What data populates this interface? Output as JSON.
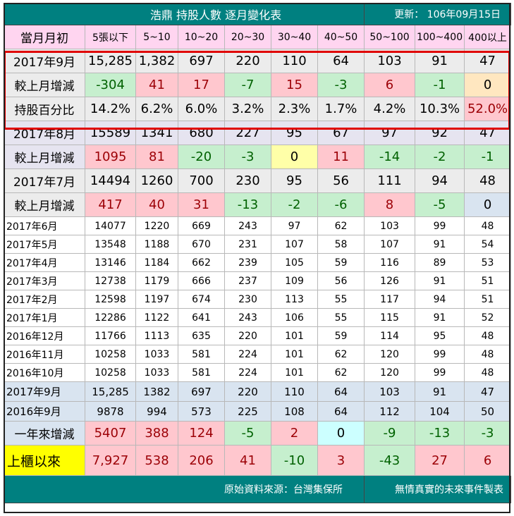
{
  "title": {
    "main": "浩鼎  持股人數 逐月變化表",
    "updated": "更新：  106年09月15日"
  },
  "headers": [
    "當月月初",
    "5張以下",
    "5~10",
    "10~20",
    "20~30",
    "30~40",
    "40~50",
    "50~100",
    "100~400",
    "400以上"
  ],
  "sep2017": {
    "label": "2017年9月",
    "values": [
      "15,285",
      "1,382",
      "697",
      "220",
      "110",
      "64",
      "103",
      "91",
      "47"
    ],
    "change_label": "較上月增減",
    "change": [
      "-304",
      "41",
      "17",
      "-7",
      "15",
      "-3",
      "6",
      "-1",
      "0"
    ],
    "pct_label": "持股百分比",
    "pct": [
      "14.2%",
      "6.2%",
      "6.0%",
      "3.2%",
      "2.3%",
      "1.7%",
      "4.2%",
      "10.3%",
      "52.0%"
    ]
  },
  "aug2017": {
    "label": "2017年8月",
    "values": [
      "15589",
      "1341",
      "680",
      "227",
      "95",
      "67",
      "97",
      "92",
      "47"
    ],
    "change_label": "較上月增減",
    "change": [
      "1095",
      "81",
      "-20",
      "-3",
      "0",
      "11",
      "-14",
      "-2",
      "-1"
    ]
  },
  "jul2017": {
    "label": "2017年7月",
    "values": [
      "14494",
      "1260",
      "700",
      "230",
      "95",
      "56",
      "111",
      "94",
      "48"
    ],
    "change_label": "較上月增減",
    "change": [
      "417",
      "40",
      "31",
      "-13",
      "-2",
      "-6",
      "8",
      "-5",
      "0"
    ]
  },
  "history": [
    {
      "label": "2017年6月",
      "values": [
        "14077",
        "1220",
        "669",
        "243",
        "97",
        "62",
        "103",
        "99",
        "48"
      ]
    },
    {
      "label": "2017年5月",
      "values": [
        "13548",
        "1188",
        "670",
        "231",
        "107",
        "58",
        "107",
        "91",
        "54"
      ]
    },
    {
      "label": "2017年4月",
      "values": [
        "13146",
        "1184",
        "662",
        "239",
        "105",
        "59",
        "116",
        "89",
        "53"
      ]
    },
    {
      "label": "2017年3月",
      "values": [
        "12738",
        "1179",
        "666",
        "237",
        "109",
        "56",
        "126",
        "91",
        "51"
      ]
    },
    {
      "label": "2017年2月",
      "values": [
        "12598",
        "1197",
        "674",
        "230",
        "113",
        "55",
        "117",
        "94",
        "51"
      ]
    },
    {
      "label": "2017年1月",
      "values": [
        "12286",
        "1122",
        "641",
        "243",
        "106",
        "55",
        "115",
        "91",
        "52"
      ]
    },
    {
      "label": "2016年12月",
      "values": [
        "11766",
        "1113",
        "635",
        "220",
        "101",
        "59",
        "114",
        "95",
        "48"
      ]
    },
    {
      "label": "2016年11月",
      "values": [
        "10258",
        "1033",
        "581",
        "224",
        "101",
        "62",
        "120",
        "99",
        "48"
      ]
    },
    {
      "label": "2016年10月",
      "values": [
        "10258",
        "1033",
        "581",
        "224",
        "101",
        "62",
        "120",
        "99",
        "48"
      ]
    }
  ],
  "compare": [
    {
      "label": "2017年9月",
      "values": [
        "15,285",
        "1382",
        "697",
        "220",
        "110",
        "64",
        "103",
        "91",
        "47"
      ]
    },
    {
      "label": "2016年9月",
      "values": [
        "9878",
        "994",
        "573",
        "225",
        "108",
        "64",
        "112",
        "104",
        "50"
      ]
    }
  ],
  "year_change": {
    "label": "一年來增減",
    "values": [
      "5407",
      "388",
      "124",
      "-5",
      "2",
      "0",
      "-9",
      "-13",
      "-3"
    ]
  },
  "since_listing": {
    "label": "上櫃以來",
    "values": [
      "7,927",
      "538",
      "206",
      "41",
      "-10",
      "3",
      "-43",
      "27",
      "6"
    ]
  },
  "footer": {
    "source": "原始資料來源：台灣集保所",
    "credit": "無情真實的未來事件製表"
  },
  "colors": {
    "title_bg": "#008080",
    "header_bg": "#ffd5f0",
    "positive": "#ffc7ce",
    "negative": "#c6efce",
    "highlight_box": "#e00000",
    "since_label": "#ffff00"
  }
}
